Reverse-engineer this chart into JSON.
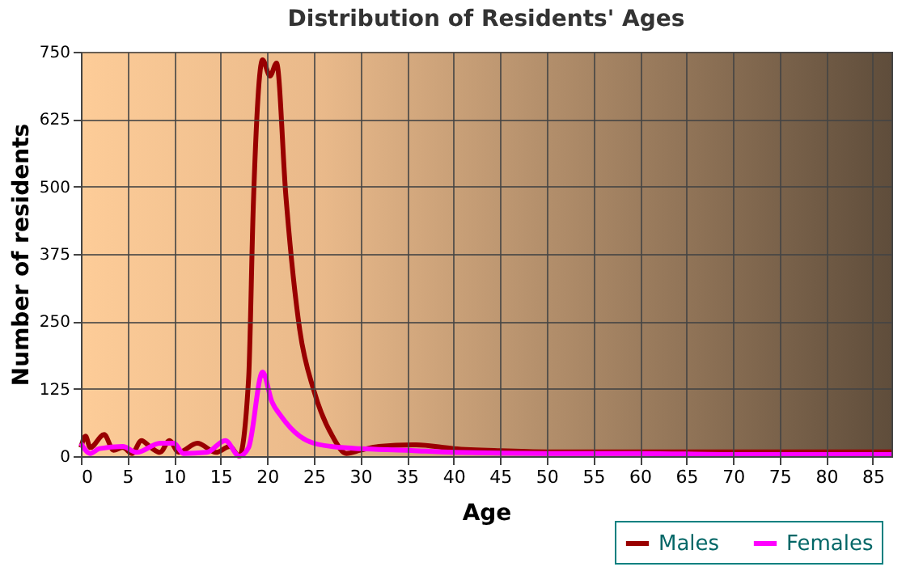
{
  "chart_data": {
    "type": "line",
    "title": "Distribution of Residents' Ages",
    "xlabel": "Age",
    "ylabel": "Number of residents",
    "xlim": [
      0,
      87
    ],
    "xticks": [
      0,
      5,
      10,
      15,
      20,
      25,
      30,
      35,
      40,
      45,
      50,
      55,
      60,
      65,
      70,
      75,
      80,
      85
    ],
    "ylim": [
      0,
      750
    ],
    "yticks": [
      0,
      125,
      250,
      375,
      500,
      625,
      750
    ],
    "grid": true,
    "legend": "bottom",
    "series": [
      {
        "name": "Males",
        "color": "#990000",
        "x": [
          0,
          0.5,
          1,
          2.5,
          3.5,
          4.5,
          5.5,
          6.5,
          7.5,
          8.5,
          9.5,
          10.5,
          12.5,
          14.5,
          16,
          17,
          18,
          18.5,
          19.5,
          20.3,
          21,
          22,
          23.5,
          25,
          27,
          28.5,
          30,
          32,
          36,
          40,
          45,
          50,
          60,
          70,
          80,
          87
        ],
        "values": [
          16,
          37,
          16,
          40,
          11,
          16,
          5,
          29,
          16,
          7,
          29,
          7,
          24,
          7,
          18,
          0,
          143,
          461,
          735,
          705,
          729,
          483,
          233,
          122,
          37,
          5,
          11,
          18,
          21,
          14,
          10,
          8,
          8,
          8,
          8,
          8
        ]
      },
      {
        "name": "Females",
        "color": "#ff00ff",
        "x": [
          0,
          1,
          2,
          4.5,
          6,
          8.5,
          10,
          11,
          13.5,
          15.5,
          17,
          18,
          19.5,
          20.5,
          21.5,
          23.5,
          25,
          28,
          30,
          35,
          40,
          50,
          60,
          70,
          87
        ],
        "values": [
          24,
          5,
          14,
          18,
          7,
          24,
          24,
          5,
          7,
          29,
          0,
          16,
          156,
          101,
          74,
          37,
          24,
          16,
          14,
          11,
          7,
          5,
          5,
          3,
          3
        ]
      }
    ]
  }
}
